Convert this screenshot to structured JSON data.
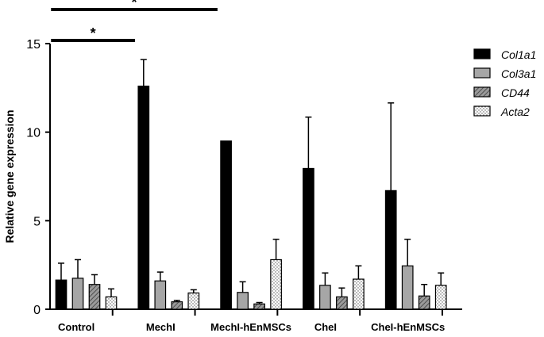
{
  "chart_data": {
    "type": "bar",
    "title": "",
    "xlabel": "",
    "ylabel": "Relative gene expression",
    "ylim": [
      0,
      15
    ],
    "yticks": [
      "0",
      "5",
      "10",
      "15"
    ],
    "grid": false,
    "legend_position": "top-right",
    "categories": [
      "Control",
      "MechI",
      "MechI-hEnMSCs",
      "CheI",
      "CheI-hEnMSCs"
    ],
    "series": [
      {
        "name": "Col1a1",
        "values": [
          1.65,
          12.6,
          9.5,
          7.95,
          6.7
        ],
        "errors": [
          0.95,
          1.5,
          0,
          2.9,
          4.95
        ],
        "color": "#000000",
        "pattern": "solid-black"
      },
      {
        "name": "Col3a1",
        "values": [
          1.75,
          1.6,
          0.95,
          1.35,
          2.45
        ],
        "errors": [
          1.05,
          0.5,
          0.6,
          0.7,
          1.5
        ],
        "color": "#a6a6a6",
        "pattern": "solid-gray"
      },
      {
        "name": "CD44",
        "values": [
          1.4,
          0.42,
          0.3,
          0.7,
          0.75
        ],
        "errors": [
          0.55,
          0.08,
          0.08,
          0.5,
          0.65
        ],
        "color": "#7f7f7f",
        "pattern": "diagonal-hatch"
      },
      {
        "name": "Acta2",
        "values": [
          0.7,
          0.92,
          2.8,
          1.7,
          1.35
        ],
        "errors": [
          0.45,
          0.18,
          1.15,
          0.75,
          0.7
        ],
        "color": "#ffffff",
        "pattern": "dotted"
      }
    ],
    "annotations": [
      {
        "label": "*",
        "from_category": "Control",
        "to_category": "MechI"
      },
      {
        "label": "*",
        "from_category": "Control",
        "to_category": "MechI-hEnMSCs"
      }
    ]
  }
}
